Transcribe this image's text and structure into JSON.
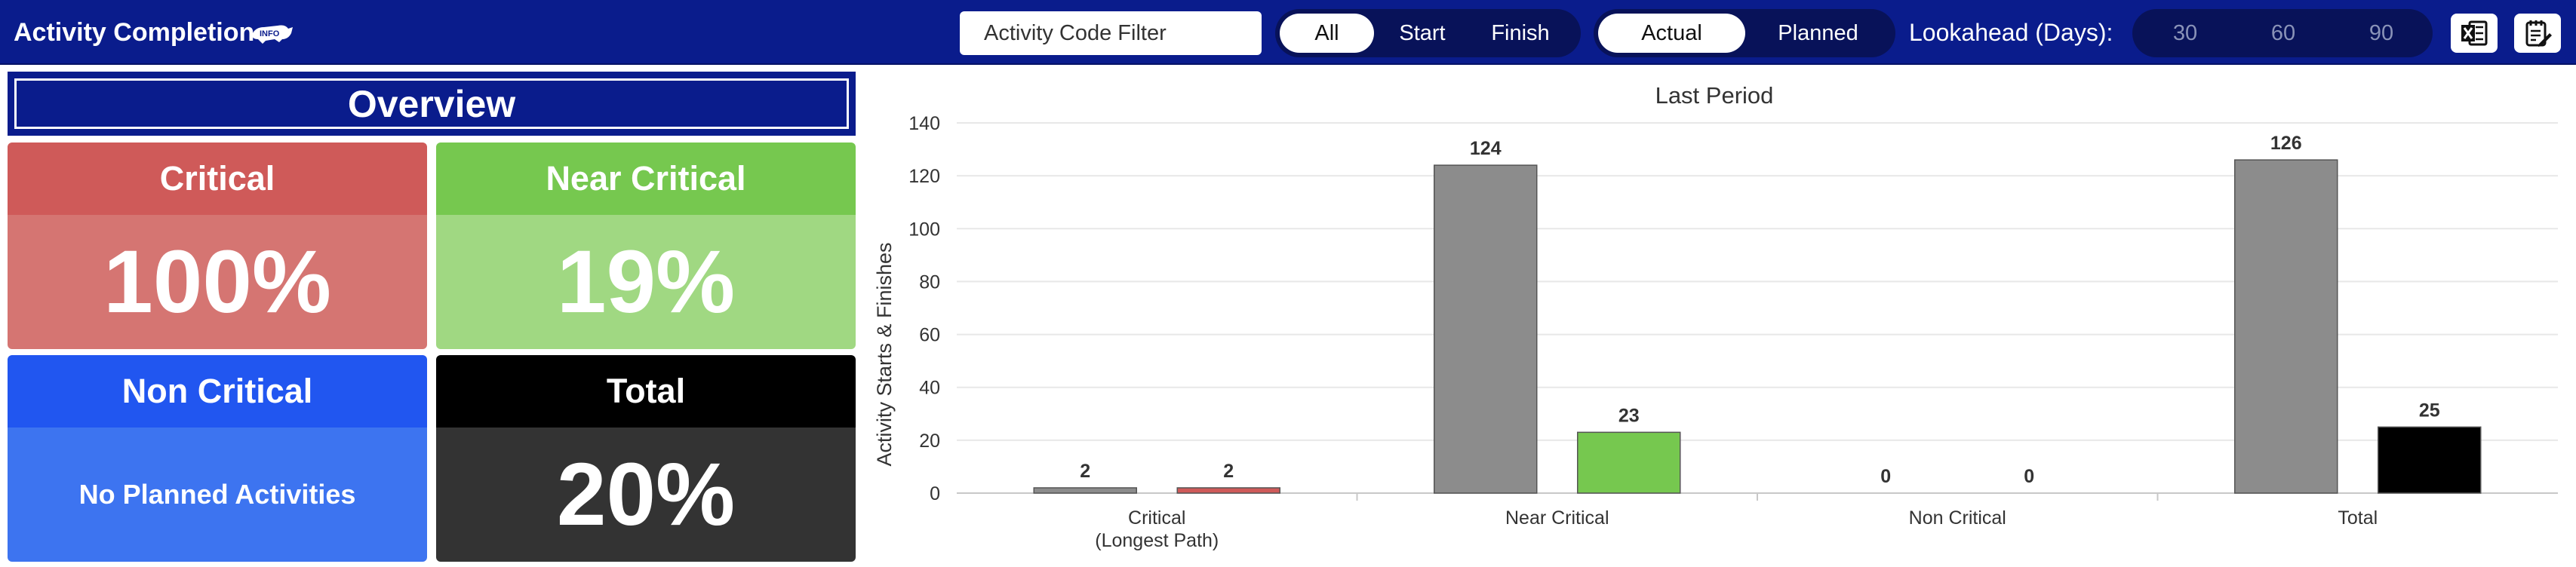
{
  "header": {
    "title": "Activity Completion",
    "filter_placeholder": "Activity Code Filter",
    "event_tabs": [
      "All",
      "Start",
      "Finish"
    ],
    "event_active": "All",
    "mode_tabs": [
      "Actual",
      "Planned"
    ],
    "mode_active": "Actual",
    "lookahead_label": "Lookahead (Days):",
    "lookahead_options": [
      "30",
      "60",
      "90"
    ],
    "export_icon": "excel-export-icon",
    "notes_icon": "notes-edit-icon"
  },
  "overview": {
    "title": "Overview",
    "cards": [
      {
        "label": "Critical",
        "value": "100%",
        "head_color": "#cf5a59",
        "body_color": "#d57572"
      },
      {
        "label": "Near Critical",
        "value": "19%",
        "head_color": "#76c84f",
        "body_color": "#a0d882"
      },
      {
        "label": "Non Critical",
        "value": "No Planned Activities",
        "head_color": "#2156f0",
        "body_color": "#3d74f0"
      },
      {
        "label": "Total",
        "value": "20%",
        "head_color": "#000000",
        "body_color": "#333333"
      }
    ]
  },
  "chart_data": {
    "type": "bar",
    "title": "Last Period",
    "ylabel": "Activity Starts & Finishes",
    "xlabel": "",
    "ylim": [
      0,
      140
    ],
    "yticks": [
      0,
      20,
      40,
      60,
      80,
      100,
      120,
      140
    ],
    "grid": true,
    "categories": [
      {
        "line1": "Critical",
        "line2": "(Longest Path)"
      },
      {
        "line1": "Near Critical",
        "line2": ""
      },
      {
        "line1": "Non Critical",
        "line2": ""
      },
      {
        "line1": "Total",
        "line2": ""
      }
    ],
    "series": [
      {
        "values": [
          2,
          124,
          0,
          126
        ],
        "colors": [
          "#8c8c8c",
          "#8c8c8c",
          "#8c8c8c",
          "#8c8c8c"
        ]
      },
      {
        "values": [
          2,
          23,
          0,
          25
        ],
        "colors": [
          "#cf5a59",
          "#76c84f",
          "#2156f0",
          "#000000"
        ]
      }
    ]
  }
}
